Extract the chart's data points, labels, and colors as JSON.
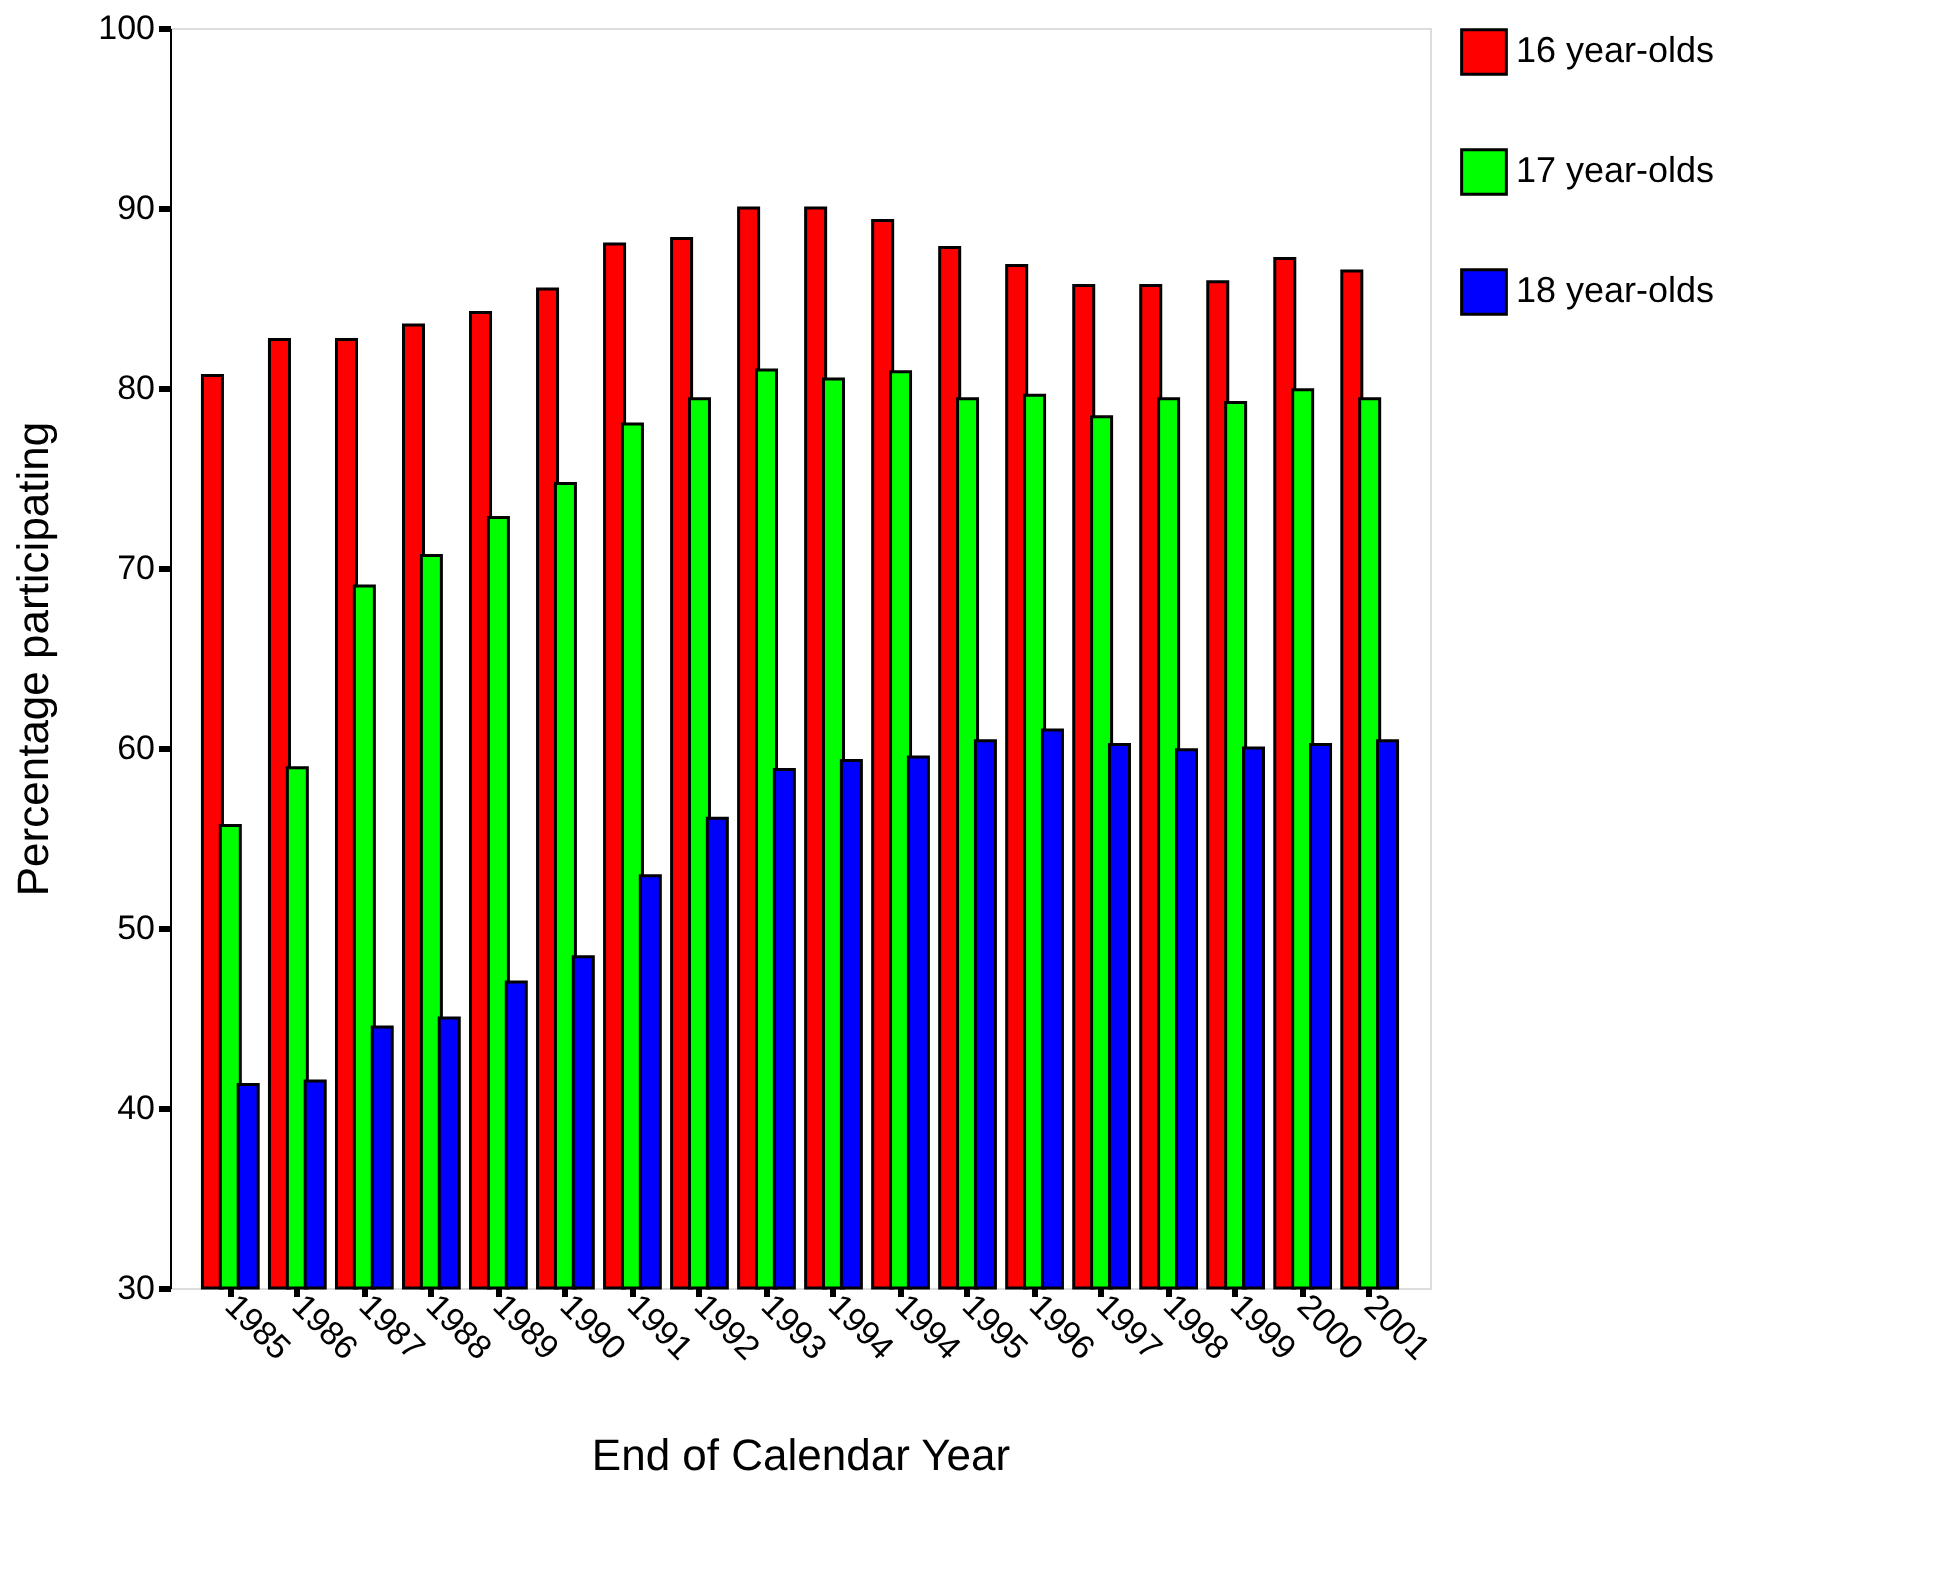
{
  "chart_data": {
    "type": "bar",
    "xlabel": "End of Calendar Year",
    "ylabel": "Percentage participating",
    "categories": [
      "1985",
      "1986",
      "1987",
      "1988",
      "1989",
      "1990",
      "1991",
      "1992",
      "1993",
      "1994",
      "1994",
      "1995",
      "1996",
      "1997",
      "1998",
      "1999",
      "2000",
      "2001"
    ],
    "series": [
      {
        "name": "16 year-olds",
        "color": "#ff0000",
        "values": [
          80.7,
          82.7,
          82.7,
          83.5,
          84.2,
          85.5,
          88.0,
          88.3,
          90.0,
          90.0,
          89.3,
          87.8,
          86.8,
          85.7,
          85.7,
          85.9,
          87.2,
          86.5
        ]
      },
      {
        "name": "17 year-olds",
        "color": "#00ff00",
        "values": [
          55.7,
          58.9,
          69.0,
          70.7,
          72.8,
          74.7,
          78.0,
          79.4,
          81.0,
          80.5,
          80.9,
          79.4,
          79.6,
          78.4,
          79.4,
          79.2,
          79.9,
          79.4
        ]
      },
      {
        "name": "18 year-olds",
        "color": "#0000ff",
        "values": [
          41.3,
          41.5,
          44.5,
          45.0,
          47.0,
          48.4,
          52.9,
          56.1,
          58.8,
          59.3,
          59.5,
          60.4,
          61.0,
          60.2,
          59.9,
          60.0,
          60.2,
          60.4
        ]
      }
    ],
    "ylim": [
      30,
      100
    ],
    "yticks": [
      30,
      40,
      50,
      60,
      70,
      80,
      90,
      100
    ],
    "grid": false,
    "legend": "right"
  }
}
